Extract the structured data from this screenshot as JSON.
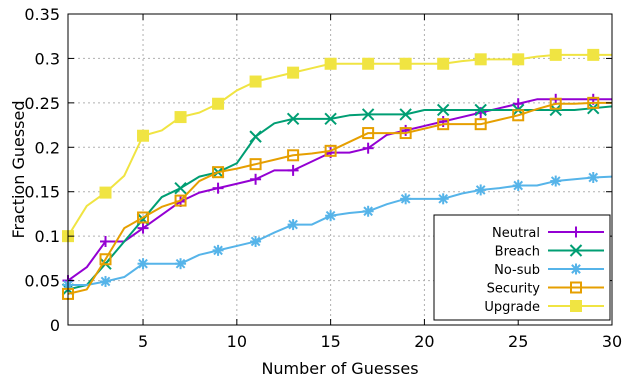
{
  "chart_data": {
    "type": "line",
    "title": "",
    "xlabel": "Number of Guesses",
    "ylabel": "Fraction Guessed",
    "xlim": [
      1,
      30
    ],
    "ylim": [
      0,
      0.35
    ],
    "xticks": [
      5,
      10,
      15,
      20,
      25,
      30
    ],
    "xtick_labels": [
      "5",
      "10",
      "15",
      "20",
      "25",
      "30"
    ],
    "yticks": [
      0,
      0.05,
      0.1,
      0.15,
      0.2,
      0.25,
      0.3,
      0.35
    ],
    "ytick_labels": [
      "0",
      "0.05",
      "0.1",
      "0.15",
      "0.2",
      "0.25",
      "0.3",
      "0.35"
    ],
    "grid": true,
    "legend_position": "bottom-right",
    "x": [
      1,
      2,
      3,
      4,
      5,
      6,
      7,
      8,
      9,
      10,
      11,
      12,
      13,
      14,
      15,
      16,
      17,
      18,
      19,
      20,
      21,
      22,
      23,
      24,
      25,
      26,
      27,
      28,
      29,
      30
    ],
    "series": [
      {
        "name": "Neutral",
        "color": "#9400d3",
        "marker": "plus",
        "values": [
          0.05,
          0.065,
          0.094,
          0.094,
          0.109,
          0.124,
          0.139,
          0.149,
          0.154,
          0.159,
          0.164,
          0.174,
          0.174,
          0.184,
          0.194,
          0.194,
          0.199,
          0.214,
          0.219,
          0.224,
          0.229,
          0.234,
          0.239,
          0.244,
          0.249,
          0.254,
          0.254,
          0.254,
          0.254,
          0.254
        ]
      },
      {
        "name": "Breach",
        "color": "#009e73",
        "marker": "x",
        "values": [
          0.04,
          0.045,
          0.069,
          0.094,
          0.119,
          0.144,
          0.154,
          0.167,
          0.172,
          0.182,
          0.212,
          0.227,
          0.232,
          0.232,
          0.232,
          0.236,
          0.237,
          0.237,
          0.237,
          0.242,
          0.242,
          0.242,
          0.242,
          0.242,
          0.242,
          0.242,
          0.242,
          0.242,
          0.244,
          0.246
        ]
      },
      {
        "name": "No-sub",
        "color": "#56b4e9",
        "marker": "star",
        "values": [
          0.045,
          0.045,
          0.049,
          0.054,
          0.069,
          0.069,
          0.069,
          0.079,
          0.084,
          0.089,
          0.094,
          0.104,
          0.113,
          0.113,
          0.123,
          0.126,
          0.128,
          0.136,
          0.142,
          0.142,
          0.142,
          0.148,
          0.152,
          0.154,
          0.157,
          0.157,
          0.162,
          0.164,
          0.166,
          0.167
        ]
      },
      {
        "name": "Security",
        "color": "#e69f00",
        "marker": "square",
        "values": [
          0.035,
          0.04,
          0.074,
          0.109,
          0.121,
          0.133,
          0.14,
          0.162,
          0.172,
          0.176,
          0.181,
          0.186,
          0.191,
          0.193,
          0.196,
          0.206,
          0.216,
          0.216,
          0.216,
          0.221,
          0.226,
          0.226,
          0.226,
          0.231,
          0.236,
          0.243,
          0.249,
          0.249,
          0.25,
          0.25
        ]
      },
      {
        "name": "Upgrade",
        "color": "#f0e442",
        "marker": "filled-square",
        "values": [
          0.1,
          0.134,
          0.149,
          0.168,
          0.213,
          0.219,
          0.234,
          0.239,
          0.249,
          0.264,
          0.274,
          0.279,
          0.284,
          0.289,
          0.294,
          0.294,
          0.294,
          0.294,
          0.294,
          0.294,
          0.294,
          0.297,
          0.299,
          0.299,
          0.299,
          0.302,
          0.304,
          0.304,
          0.304,
          0.304
        ]
      }
    ]
  }
}
